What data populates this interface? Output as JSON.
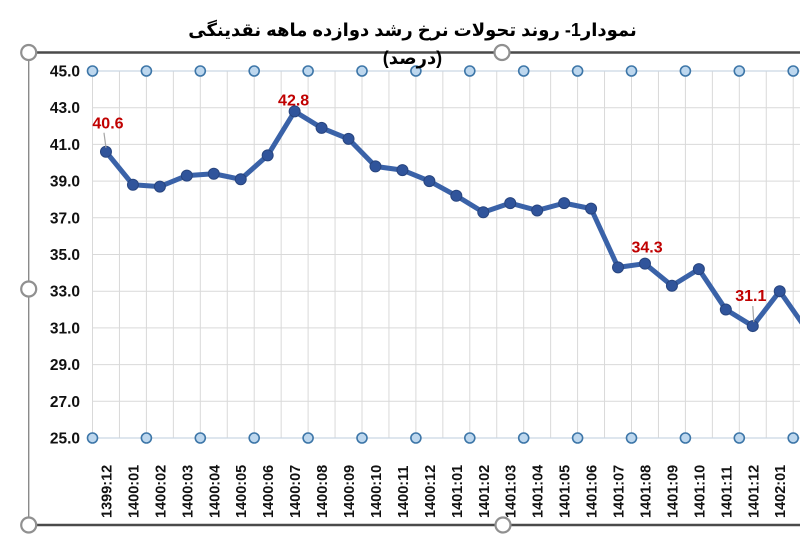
{
  "chart_data": {
    "type": "line",
    "title": "نمودار1- روند تحولات نرخ رشد دوازده ماهه نقدینگی (درصد)",
    "categories": [
      "1399:12",
      "1400:01",
      "1400:02",
      "1400:03",
      "1400:04",
      "1400:05",
      "1400:06",
      "1400:07",
      "1400:08",
      "1400:09",
      "1400:10",
      "1400:11",
      "1400:12",
      "1401:01",
      "1401:02",
      "1401:03",
      "1401:04",
      "1401:05",
      "1401:06",
      "1401:07",
      "1401:08",
      "1401:09",
      "1401:10",
      "1401:11",
      "1401:12",
      "1402:01"
    ],
    "series": [
      {
        "name": "twelve-month-liquidity-growth-rate-percent",
        "values": [
          40.6,
          38.8,
          38.7,
          39.3,
          39.4,
          39.1,
          40.4,
          42.8,
          41.9,
          41.3,
          39.8,
          39.6,
          39.0,
          38.2,
          37.3,
          37.8,
          37.4,
          37.8,
          37.5,
          34.3,
          34.5,
          33.3,
          34.2,
          32.0,
          31.1,
          33.0
        ]
      }
    ],
    "clipped_segment_end_value": 30.9,
    "data_labels": [
      {
        "index": 0,
        "category": "1399:12",
        "text": "40.6"
      },
      {
        "index": 7,
        "category": "1400:07",
        "text": "42.8"
      },
      {
        "index": 19,
        "category": "1401:07",
        "text": "34.3"
      },
      {
        "index": 24,
        "category": "1401:12",
        "text": "31.1"
      }
    ],
    "upper_band_value": 45.0,
    "lower_band_value": 25.0,
    "y_ticks": [
      "45.0",
      "43.0",
      "41.0",
      "39.0",
      "37.0",
      "35.0",
      "33.0",
      "31.0",
      "29.0",
      "27.0",
      "25.0"
    ],
    "ylim": [
      25,
      45
    ],
    "x_tick_rotation_deg": 90,
    "grid": "on",
    "legend": "none"
  },
  "colors": {
    "series_line": "#3A62A8",
    "series_marker_fill": "#30549B",
    "series_marker_stroke": "#28457F",
    "data_label": "#C00000",
    "leader_line": "#A6A6A6",
    "gridline": "#D9D9D9",
    "band_line": "#C9D6E4",
    "band_marker_fill": "#BDD7EE",
    "band_marker_stroke": "#3D76A8",
    "axis_text": "#111111",
    "border_dark": "#4A4A4A",
    "border_light": "#8A8A8A",
    "handle_stroke": "#909090",
    "handle_fill": "#FFFFFF"
  },
  "selection": {
    "handles": [
      "top-left",
      "top-middle",
      "left-middle",
      "bottom-left",
      "bottom-middle"
    ]
  }
}
